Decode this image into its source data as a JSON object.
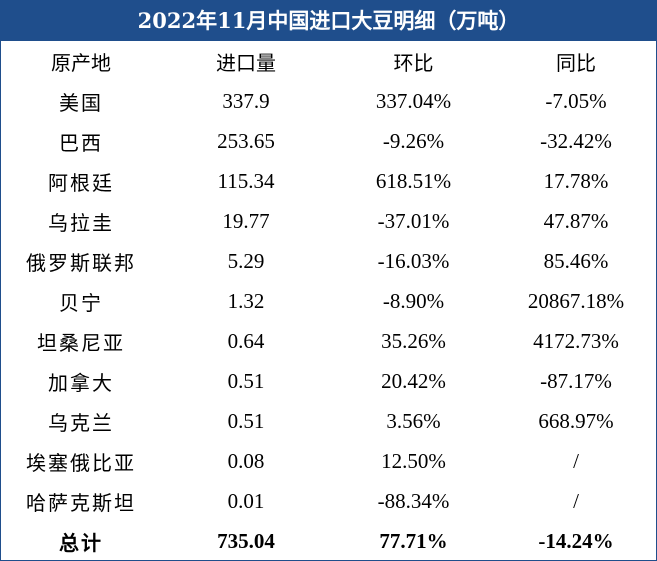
{
  "title": "2022年11月中国进口大豆明细（万吨）",
  "headers": [
    "原产地",
    "进口量",
    "环比",
    "同比"
  ],
  "rows": [
    [
      "美国",
      "337.9",
      "337.04%",
      "-7.05%"
    ],
    [
      "巴西",
      "253.65",
      "-9.26%",
      "-32.42%"
    ],
    [
      "阿根廷",
      "115.34",
      "618.51%",
      "17.78%"
    ],
    [
      "乌拉圭",
      "19.77",
      "-37.01%",
      "47.87%"
    ],
    [
      "俄罗斯联邦",
      "5.29",
      "-16.03%",
      "85.46%"
    ],
    [
      "贝宁",
      "1.32",
      "-8.90%",
      "20867.18%"
    ],
    [
      "坦桑尼亚",
      "0.64",
      "35.26%",
      "4172.73%"
    ],
    [
      "加拿大",
      "0.51",
      "20.42%",
      "-87.17%"
    ],
    [
      "乌克兰",
      "0.51",
      "3.56%",
      "668.97%"
    ],
    [
      "埃塞俄比亚",
      "0.08",
      "12.50%",
      "/"
    ],
    [
      "哈萨克斯坦",
      "0.01",
      "-88.34%",
      "/"
    ]
  ],
  "total": [
    "总计",
    "735.04",
    "77.71%",
    "-14.24%"
  ],
  "colors": {
    "title_bg": "#1f4e8c",
    "title_text": "#ffffff"
  }
}
